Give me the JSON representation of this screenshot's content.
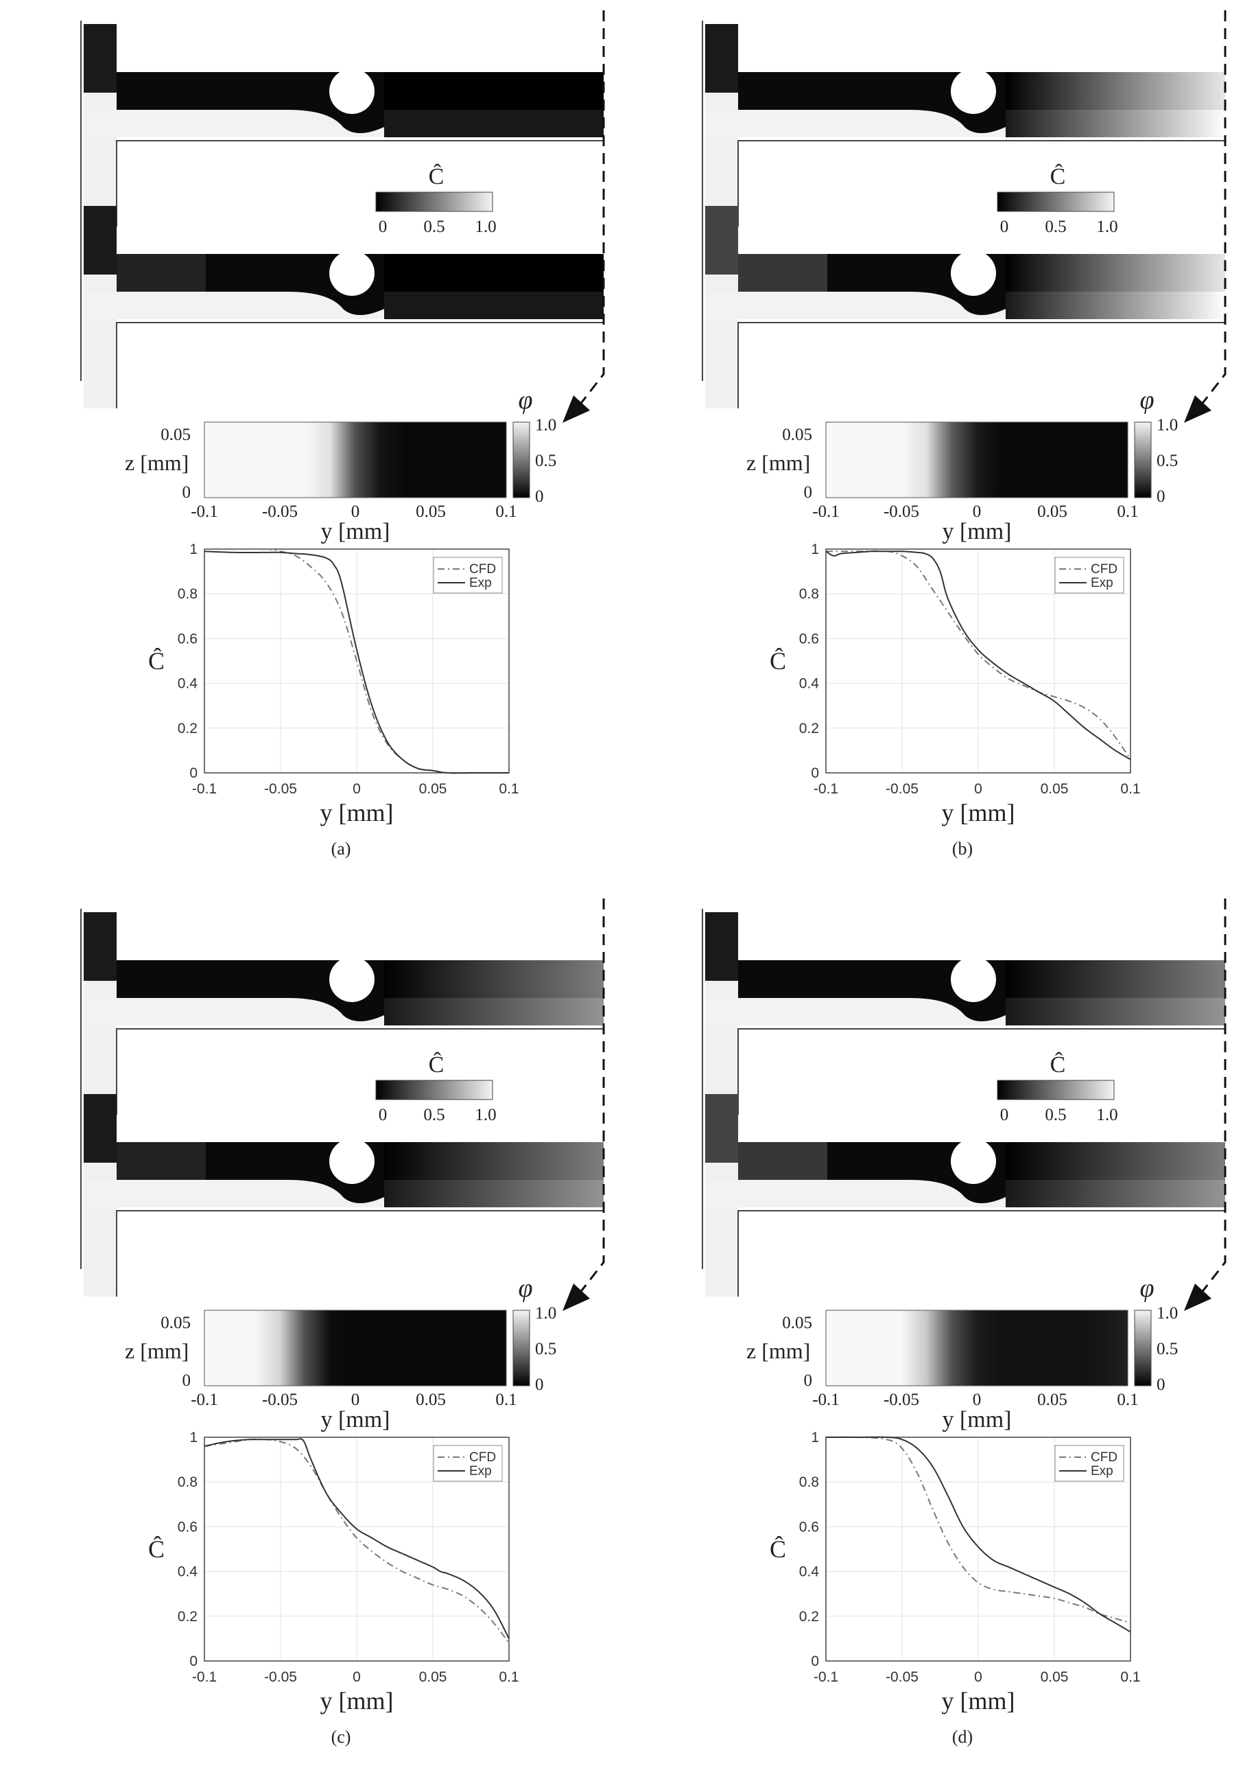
{
  "colorbar": {
    "symbol": "Ĉ",
    "ticks": [
      "0",
      "0.5",
      "1.0"
    ]
  },
  "phi_map": {
    "symbol": "φ",
    "cb_ticks": [
      "1.0",
      "0.5",
      "0"
    ],
    "z_label": "z [mm]",
    "z_ticks": [
      "0.05",
      "0"
    ],
    "y_label": "y [mm]",
    "y_ticks": [
      "-0.1",
      "-0.05",
      "0",
      "0.05",
      "0.1"
    ]
  },
  "profile_axes": {
    "x_label": "y [mm]",
    "y_label": "Ĉ",
    "x_ticks": [
      "-0.1",
      "-0.05",
      "0",
      "0.05",
      "0.1"
    ],
    "y_ticks": [
      "0",
      "0.2",
      "0.4",
      "0.6",
      "0.8",
      "1"
    ]
  },
  "panels": [
    {
      "id": "a",
      "caption": "(a)",
      "legend": [
        "CFD",
        "Exp"
      ],
      "lower_colorbar_level": 0.1,
      "phi_profile": [
        1,
        1,
        1,
        1,
        1,
        0.9,
        0.3,
        0.05,
        0,
        0,
        0,
        0,
        0
      ]
    },
    {
      "id": "b",
      "caption": "(b)",
      "legend": [
        "CFD",
        "Exp"
      ],
      "lower_colorbar_level": 0.25,
      "phi_profile": [
        1,
        1,
        1,
        1,
        0.9,
        0.35,
        0.08,
        0,
        0,
        0,
        0,
        0,
        0
      ]
    },
    {
      "id": "c",
      "caption": "(c)",
      "legend": [
        "CFD",
        "Exp"
      ],
      "lower_colorbar_level": 0.1,
      "phi_profile": [
        1,
        1,
        1,
        0.85,
        0.3,
        0.02,
        0,
        0,
        0,
        0,
        0,
        0,
        0
      ]
    },
    {
      "id": "d",
      "caption": "(d)",
      "legend": [
        "CFD",
        "Exp"
      ],
      "lower_colorbar_level": 0.25,
      "phi_profile": [
        1,
        1,
        1,
        1,
        0.8,
        0.3,
        0.08,
        0.04,
        0.04,
        0.04,
        0.04,
        0.06,
        0.1
      ]
    }
  ],
  "chart_data": [
    {
      "panel": "a",
      "type": "line",
      "xlabel": "y [mm]",
      "ylabel": "Ĉ",
      "xlim": [
        -0.1,
        0.1
      ],
      "ylim": [
        0,
        1
      ],
      "series": [
        {
          "name": "CFD",
          "x": [
            -0.1,
            -0.08,
            -0.06,
            -0.05,
            -0.04,
            -0.03,
            -0.02,
            -0.01,
            0,
            0.01,
            0.02,
            0.03,
            0.04,
            0.05,
            0.06,
            0.08,
            0.1
          ],
          "y": [
            1,
            1,
            1,
            0.99,
            0.97,
            0.92,
            0.85,
            0.72,
            0.5,
            0.27,
            0.13,
            0.06,
            0.02,
            0.01,
            0,
            0,
            0
          ]
        },
        {
          "name": "Exp",
          "x": [
            -0.1,
            -0.08,
            -0.06,
            -0.05,
            -0.04,
            -0.03,
            -0.02,
            -0.015,
            -0.01,
            0,
            0.01,
            0.02,
            0.03,
            0.04,
            0.05,
            0.06,
            0.08,
            0.1
          ],
          "y": [
            0.99,
            0.985,
            0.985,
            0.985,
            0.98,
            0.975,
            0.96,
            0.93,
            0.85,
            0.55,
            0.3,
            0.14,
            0.06,
            0.02,
            0.01,
            0,
            0,
            0
          ]
        }
      ]
    },
    {
      "panel": "b",
      "type": "line",
      "xlabel": "y [mm]",
      "ylabel": "Ĉ",
      "xlim": [
        -0.1,
        0.1
      ],
      "ylim": [
        0,
        1
      ],
      "series": [
        {
          "name": "CFD",
          "x": [
            -0.1,
            -0.08,
            -0.06,
            -0.05,
            -0.04,
            -0.03,
            -0.02,
            -0.01,
            0,
            0.01,
            0.02,
            0.03,
            0.04,
            0.05,
            0.06,
            0.07,
            0.08,
            0.09,
            0.1
          ],
          "y": [
            0.99,
            0.99,
            0.99,
            0.97,
            0.92,
            0.82,
            0.72,
            0.62,
            0.53,
            0.47,
            0.42,
            0.39,
            0.36,
            0.34,
            0.32,
            0.29,
            0.24,
            0.16,
            0.06
          ]
        },
        {
          "name": "Exp",
          "x": [
            -0.1,
            -0.095,
            -0.09,
            -0.08,
            -0.07,
            -0.06,
            -0.05,
            -0.04,
            -0.035,
            -0.03,
            -0.025,
            -0.02,
            -0.01,
            0,
            0.01,
            0.02,
            0.03,
            0.04,
            0.05,
            0.06,
            0.07,
            0.08,
            0.09,
            0.1
          ],
          "y": [
            0.99,
            0.97,
            0.98,
            0.985,
            0.99,
            0.99,
            0.99,
            0.985,
            0.98,
            0.96,
            0.9,
            0.78,
            0.64,
            0.55,
            0.49,
            0.44,
            0.4,
            0.36,
            0.32,
            0.26,
            0.2,
            0.15,
            0.1,
            0.06
          ]
        }
      ]
    },
    {
      "panel": "c",
      "type": "line",
      "xlabel": "y [mm]",
      "ylabel": "Ĉ",
      "xlim": [
        -0.1,
        0.1
      ],
      "ylim": [
        0,
        1
      ],
      "series": [
        {
          "name": "CFD",
          "x": [
            -0.1,
            -0.09,
            -0.08,
            -0.07,
            -0.06,
            -0.05,
            -0.04,
            -0.03,
            -0.02,
            -0.01,
            0,
            0.01,
            0.02,
            0.03,
            0.04,
            0.05,
            0.06,
            0.07,
            0.08,
            0.09,
            0.1
          ],
          "y": [
            0.96,
            0.97,
            0.98,
            0.99,
            0.99,
            0.98,
            0.95,
            0.87,
            0.75,
            0.64,
            0.55,
            0.49,
            0.44,
            0.4,
            0.37,
            0.34,
            0.32,
            0.29,
            0.24,
            0.17,
            0.08
          ]
        },
        {
          "name": "Exp",
          "x": [
            -0.1,
            -0.09,
            -0.08,
            -0.07,
            -0.06,
            -0.05,
            -0.04,
            -0.035,
            -0.03,
            -0.02,
            -0.01,
            0,
            0.01,
            0.02,
            0.03,
            0.04,
            0.05,
            0.055,
            0.06,
            0.07,
            0.08,
            0.09,
            0.1
          ],
          "y": [
            0.96,
            0.975,
            0.985,
            0.99,
            0.99,
            0.99,
            0.99,
            0.985,
            0.9,
            0.75,
            0.66,
            0.59,
            0.55,
            0.51,
            0.48,
            0.45,
            0.42,
            0.4,
            0.39,
            0.36,
            0.31,
            0.23,
            0.1
          ]
        }
      ]
    },
    {
      "panel": "d",
      "type": "line",
      "xlabel": "y [mm]",
      "ylabel": "Ĉ",
      "xlim": [
        -0.1,
        0.1
      ],
      "ylim": [
        0,
        1
      ],
      "series": [
        {
          "name": "CFD",
          "x": [
            -0.1,
            -0.08,
            -0.06,
            -0.05,
            -0.04,
            -0.03,
            -0.02,
            -0.01,
            0,
            0.01,
            0.02,
            0.03,
            0.04,
            0.05,
            0.06,
            0.07,
            0.08,
            0.09,
            0.1
          ],
          "y": [
            1,
            1,
            0.99,
            0.95,
            0.84,
            0.68,
            0.53,
            0.42,
            0.35,
            0.32,
            0.31,
            0.3,
            0.29,
            0.28,
            0.26,
            0.24,
            0.21,
            0.19,
            0.17
          ]
        },
        {
          "name": "Exp",
          "x": [
            -0.1,
            -0.08,
            -0.06,
            -0.05,
            -0.04,
            -0.03,
            -0.02,
            -0.01,
            0,
            0.01,
            0.02,
            0.03,
            0.04,
            0.05,
            0.06,
            0.07,
            0.08,
            0.09,
            0.1
          ],
          "y": [
            1,
            1,
            1,
            0.99,
            0.95,
            0.87,
            0.74,
            0.6,
            0.51,
            0.45,
            0.42,
            0.39,
            0.36,
            0.33,
            0.3,
            0.26,
            0.21,
            0.17,
            0.13
          ]
        }
      ]
    }
  ]
}
